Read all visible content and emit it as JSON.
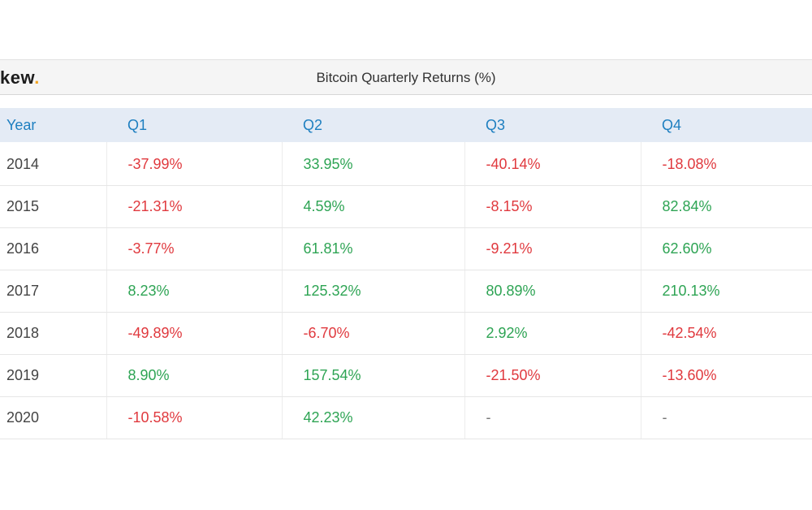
{
  "header": {
    "logo_text": "kew",
    "logo_dot": ".",
    "title": "Bitcoin Quarterly Returns (%)"
  },
  "colors": {
    "positive": "#2ea454",
    "negative": "#e0393e",
    "header_text": "#1e7fc0",
    "header_bg": "#e4ebf5",
    "logo_accent": "#f5a623"
  },
  "chart_data": {
    "type": "table",
    "title": "Bitcoin Quarterly Returns (%)",
    "columns": [
      "Year",
      "Q1",
      "Q2",
      "Q3",
      "Q4"
    ],
    "rows": [
      {
        "year": "2014",
        "values": [
          "-37.99%",
          "33.95%",
          "-40.14%",
          "-18.08%"
        ]
      },
      {
        "year": "2015",
        "values": [
          "-21.31%",
          "4.59%",
          "-8.15%",
          "82.84%"
        ]
      },
      {
        "year": "2016",
        "values": [
          "-3.77%",
          "61.81%",
          "-9.21%",
          "62.60%"
        ]
      },
      {
        "year": "2017",
        "values": [
          "8.23%",
          "125.32%",
          "80.89%",
          "210.13%"
        ]
      },
      {
        "year": "2018",
        "values": [
          "-49.89%",
          "-6.70%",
          "2.92%",
          "-42.54%"
        ]
      },
      {
        "year": "2019",
        "values": [
          "8.90%",
          "157.54%",
          "-21.50%",
          "-13.60%"
        ]
      },
      {
        "year": "2020",
        "values": [
          "-10.58%",
          "42.23%",
          "-",
          "-"
        ]
      }
    ]
  }
}
